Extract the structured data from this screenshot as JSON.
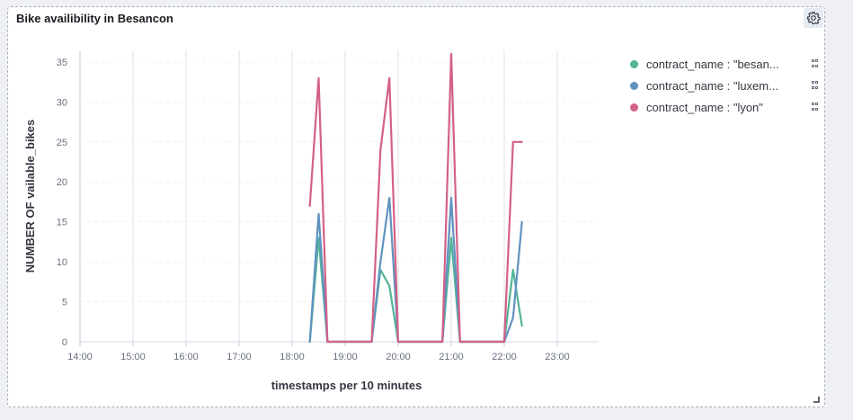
{
  "panel": {
    "title": "Bike availibility in Besancon",
    "settings_icon": "gear-icon"
  },
  "legend": {
    "items": [
      {
        "label": "contract_name : \"besan...",
        "color": "#54b399"
      },
      {
        "label": "contract_name : \"luxem...",
        "color": "#6092c0"
      },
      {
        "label": "contract_name : \"lyon\"",
        "color": "#d36086"
      }
    ]
  },
  "chart_data": {
    "type": "line",
    "xlabel": "timestamps per 10 minutes",
    "ylabel": "NUMBER OF vailable_bikes",
    "xlim": [
      "14:00",
      "23:50"
    ],
    "ylim": [
      0,
      36
    ],
    "x_ticks": [
      "14:00",
      "15:00",
      "16:00",
      "17:00",
      "18:00",
      "19:00",
      "20:00",
      "21:00",
      "22:00",
      "23:00"
    ],
    "y_ticks": [
      0,
      5,
      10,
      15,
      20,
      25,
      30,
      35
    ],
    "grid": true,
    "legend_position": "right",
    "series": [
      {
        "name": "contract_name : \"besan...",
        "color": "#54b399",
        "points": [
          [
            "18:20",
            0
          ],
          [
            "18:30",
            13
          ],
          [
            "18:40",
            0
          ],
          [
            "18:50",
            0
          ],
          [
            "19:00",
            0
          ],
          [
            "19:10",
            0
          ],
          [
            "19:20",
            0
          ],
          [
            "19:30",
            0
          ],
          [
            "19:40",
            9
          ],
          [
            "19:50",
            7
          ],
          [
            "20:00",
            0
          ],
          [
            "20:10",
            0
          ],
          [
            "20:20",
            0
          ],
          [
            "20:30",
            0
          ],
          [
            "20:40",
            0
          ],
          [
            "20:50",
            0
          ],
          [
            "21:00",
            13
          ],
          [
            "21:10",
            0
          ],
          [
            "21:20",
            0
          ],
          [
            "21:30",
            0
          ],
          [
            "21:40",
            0
          ],
          [
            "21:50",
            0
          ],
          [
            "22:00",
            0
          ],
          [
            "22:10",
            9
          ],
          [
            "22:20",
            2
          ]
        ]
      },
      {
        "name": "contract_name : \"luxem...",
        "color": "#6092c0",
        "points": [
          [
            "18:20",
            0
          ],
          [
            "18:30",
            16
          ],
          [
            "18:40",
            0
          ],
          [
            "18:50",
            0
          ],
          [
            "19:00",
            0
          ],
          [
            "19:10",
            0
          ],
          [
            "19:20",
            0
          ],
          [
            "19:30",
            0
          ],
          [
            "19:40",
            10
          ],
          [
            "19:50",
            18
          ],
          [
            "20:00",
            0
          ],
          [
            "20:10",
            0
          ],
          [
            "20:20",
            0
          ],
          [
            "20:30",
            0
          ],
          [
            "20:40",
            0
          ],
          [
            "20:50",
            0
          ],
          [
            "21:00",
            18
          ],
          [
            "21:10",
            0
          ],
          [
            "21:20",
            0
          ],
          [
            "21:30",
            0
          ],
          [
            "21:40",
            0
          ],
          [
            "21:50",
            0
          ],
          [
            "22:00",
            0
          ],
          [
            "22:10",
            3
          ],
          [
            "22:20",
            15
          ]
        ]
      },
      {
        "name": "contract_name : \"lyon\"",
        "color": "#d36086",
        "points": [
          [
            "18:20",
            17
          ],
          [
            "18:30",
            33
          ],
          [
            "18:40",
            0
          ],
          [
            "18:50",
            0
          ],
          [
            "19:00",
            0
          ],
          [
            "19:10",
            0
          ],
          [
            "19:20",
            0
          ],
          [
            "19:30",
            0
          ],
          [
            "19:40",
            24
          ],
          [
            "19:50",
            33
          ],
          [
            "20:00",
            0
          ],
          [
            "20:10",
            0
          ],
          [
            "20:20",
            0
          ],
          [
            "20:30",
            0
          ],
          [
            "20:40",
            0
          ],
          [
            "20:50",
            0
          ],
          [
            "21:00",
            36
          ],
          [
            "21:10",
            0
          ],
          [
            "21:20",
            0
          ],
          [
            "21:30",
            0
          ],
          [
            "21:40",
            0
          ],
          [
            "21:50",
            0
          ],
          [
            "22:00",
            0
          ],
          [
            "22:10",
            25
          ],
          [
            "22:20",
            25
          ]
        ]
      }
    ]
  }
}
